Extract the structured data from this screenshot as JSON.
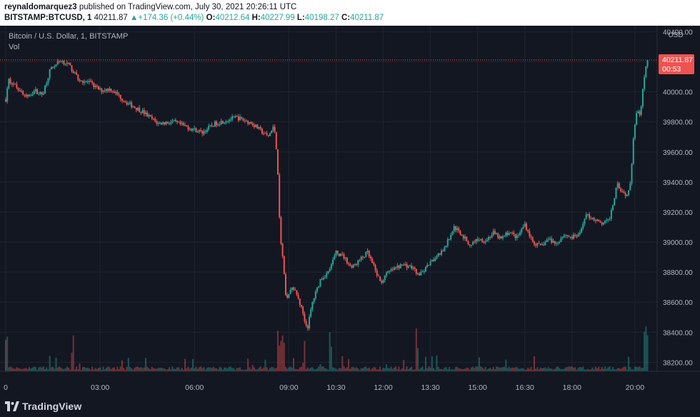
{
  "header": {
    "author": "reynaldomarquez3",
    "published": "published on TradingView.com, July 30, 2021 20:26:11 UTC",
    "symbol": "BITSTAMP:BTCUSD, 1",
    "last": "40211.87",
    "change_arrow": "▲",
    "change": "+174.36 (+0.44%)",
    "o_label": "O:",
    "o_value": "40212.64",
    "h_label": "H:",
    "h_value": "40227.99",
    "l_label": "L:",
    "l_value": "40198.27",
    "c_label": "C:",
    "c_value": "40211.87"
  },
  "pane": {
    "title": "Bitcoin / U.S. Dollar, 1, BITSTAMP",
    "vol_label": "Vol"
  },
  "footer": {
    "brand": "TradingView",
    "logo_icon": "tradingview-logo-icon"
  },
  "colors": {
    "bg": "#131722",
    "up": "#26a69a",
    "down": "#ef5350",
    "grid": "#1f2430",
    "axis_text": "#b2b5be"
  },
  "chart_data": {
    "type": "candlestick",
    "currency": "USD",
    "y_ticks": [
      38200,
      38400,
      38600,
      38800,
      39000,
      39200,
      39400,
      39600,
      39800,
      40000,
      40200,
      40400
    ],
    "y_tick_labels": [
      "38200.00",
      "38400.00",
      "38600.00",
      "38800.00",
      "39000.00",
      "39200.00",
      "39400.00",
      "39600.00",
      "39800.00",
      "40000.00",
      "40200.00",
      "40400.00"
    ],
    "ylim": [
      38140,
      40440
    ],
    "x_tick_labels": [
      "0",
      "03:00",
      "06:00",
      "09:00",
      "10:30",
      "12:00",
      "13:30",
      "15:00",
      "16:30",
      "18:00",
      "20:00"
    ],
    "x_tick_minutes": [
      0,
      180,
      360,
      540,
      630,
      720,
      810,
      900,
      990,
      1080,
      1200
    ],
    "x_range_minutes": [
      0,
      1226
    ],
    "last_price": 40211.87,
    "last_price_label": "40211.87",
    "countdown": "00:53",
    "grid": true,
    "price_path": [
      [
        0,
        39950
      ],
      [
        5,
        40080
      ],
      [
        12,
        40060
      ],
      [
        25,
        40020
      ],
      [
        40,
        39960
      ],
      [
        55,
        40010
      ],
      [
        70,
        39980
      ],
      [
        85,
        40150
      ],
      [
        105,
        40210
      ],
      [
        120,
        40180
      ],
      [
        140,
        40080
      ],
      [
        160,
        40060
      ],
      [
        180,
        40010
      ],
      [
        200,
        40020
      ],
      [
        230,
        39930
      ],
      [
        260,
        39870
      ],
      [
        290,
        39790
      ],
      [
        320,
        39800
      ],
      [
        350,
        39760
      ],
      [
        375,
        39730
      ],
      [
        400,
        39790
      ],
      [
        440,
        39830
      ],
      [
        470,
        39790
      ],
      [
        500,
        39700
      ],
      [
        512,
        39770
      ],
      [
        518,
        39560
      ],
      [
        523,
        39050
      ],
      [
        528,
        38900
      ],
      [
        535,
        38600
      ],
      [
        545,
        38700
      ],
      [
        555,
        38650
      ],
      [
        565,
        38550
      ],
      [
        575,
        38420
      ],
      [
        585,
        38600
      ],
      [
        600,
        38750
      ],
      [
        615,
        38800
      ],
      [
        630,
        38930
      ],
      [
        645,
        38900
      ],
      [
        660,
        38830
      ],
      [
        675,
        38880
      ],
      [
        690,
        38930
      ],
      [
        700,
        38850
      ],
      [
        715,
        38730
      ],
      [
        730,
        38800
      ],
      [
        745,
        38830
      ],
      [
        760,
        38850
      ],
      [
        775,
        38830
      ],
      [
        790,
        38780
      ],
      [
        805,
        38840
      ],
      [
        820,
        38900
      ],
      [
        835,
        38950
      ],
      [
        845,
        39020
      ],
      [
        855,
        39100
      ],
      [
        870,
        39050
      ],
      [
        885,
        38980
      ],
      [
        900,
        39020
      ],
      [
        915,
        39010
      ],
      [
        930,
        39060
      ],
      [
        945,
        39020
      ],
      [
        960,
        39070
      ],
      [
        975,
        39030
      ],
      [
        990,
        39120
      ],
      [
        1005,
        39000
      ],
      [
        1020,
        38970
      ],
      [
        1035,
        39020
      ],
      [
        1050,
        38990
      ],
      [
        1065,
        39050
      ],
      [
        1080,
        39030
      ],
      [
        1095,
        39050
      ],
      [
        1105,
        39180
      ],
      [
        1120,
        39160
      ],
      [
        1135,
        39120
      ],
      [
        1150,
        39140
      ],
      [
        1160,
        39280
      ],
      [
        1165,
        39400
      ],
      [
        1175,
        39340
      ],
      [
        1185,
        39310
      ],
      [
        1192,
        39420
      ],
      [
        1197,
        39700
      ],
      [
        1203,
        39870
      ],
      [
        1210,
        39850
      ],
      [
        1215,
        40020
      ],
      [
        1220,
        40150
      ],
      [
        1226,
        40211.87
      ]
    ],
    "volume_spikes_minutes": [
      2,
      128,
      519,
      524,
      529,
      570,
      620,
      785,
      822,
      1220,
      1224
    ]
  }
}
